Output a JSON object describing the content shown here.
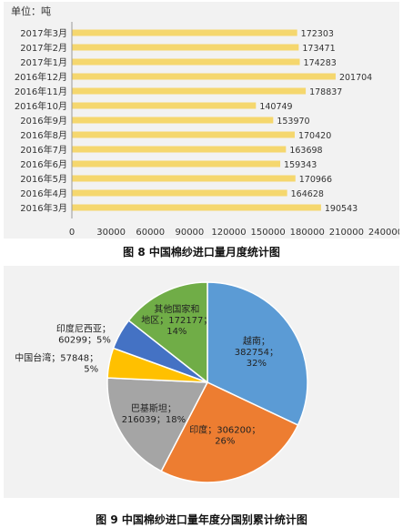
{
  "chart_data": [
    {
      "type": "bar",
      "orientation": "horizontal",
      "unit_label": "单位：吨",
      "categories": [
        "2017年3月",
        "2017年2月",
        "2017年1月",
        "2016年12月",
        "2016年11月",
        "2016年10月",
        "2016年9月",
        "2016年8月",
        "2016年7月",
        "2016年6月",
        "2016年5月",
        "2016年4月",
        "2016年3月"
      ],
      "values": [
        172303,
        173471,
        174283,
        201704,
        178837,
        140749,
        153970,
        170420,
        163698,
        159343,
        170966,
        164628,
        190543
      ],
      "value_labels": [
        "172303",
        "173471",
        "174283",
        "201704",
        "178837",
        "140749",
        "153970",
        "170420",
        "163698",
        "159343",
        "170966",
        "164628",
        "190543"
      ],
      "xlim": [
        0,
        240000
      ],
      "xticks": [
        "0",
        "30000",
        "60000",
        "90000",
        "120000",
        "150000",
        "180000",
        "210000",
        "240000"
      ],
      "grid": false,
      "bar_color": "#f5d76e",
      "caption": "图 8  中国棉纱进口量月度统计图"
    },
    {
      "type": "pie",
      "slices": [
        {
          "label_lines": [
            "越南；",
            "382754；",
            "32%"
          ],
          "value": 382754,
          "color": "#5b9bd5"
        },
        {
          "label_lines": [
            "印度；306200；",
            "26%"
          ],
          "value": 306200,
          "color": "#ed7d31"
        },
        {
          "label_lines": [
            "巴基斯坦；",
            "216039；18%"
          ],
          "value": 216039,
          "color": "#a5a5a5"
        },
        {
          "label_lines": [
            "中国台湾；57848；",
            "5%"
          ],
          "value": 57848,
          "color": "#ffc000"
        },
        {
          "label_lines": [
            "印度尼西亚；",
            "60299；5%"
          ],
          "value": 60299,
          "color": "#4472c4"
        },
        {
          "label_lines": [
            "其他国家和",
            "地区；172177；",
            "14%"
          ],
          "value": 172177,
          "color": "#70ad47"
        }
      ],
      "caption": "图 9  中国棉纱进口量年度分国别累计统计图"
    }
  ]
}
